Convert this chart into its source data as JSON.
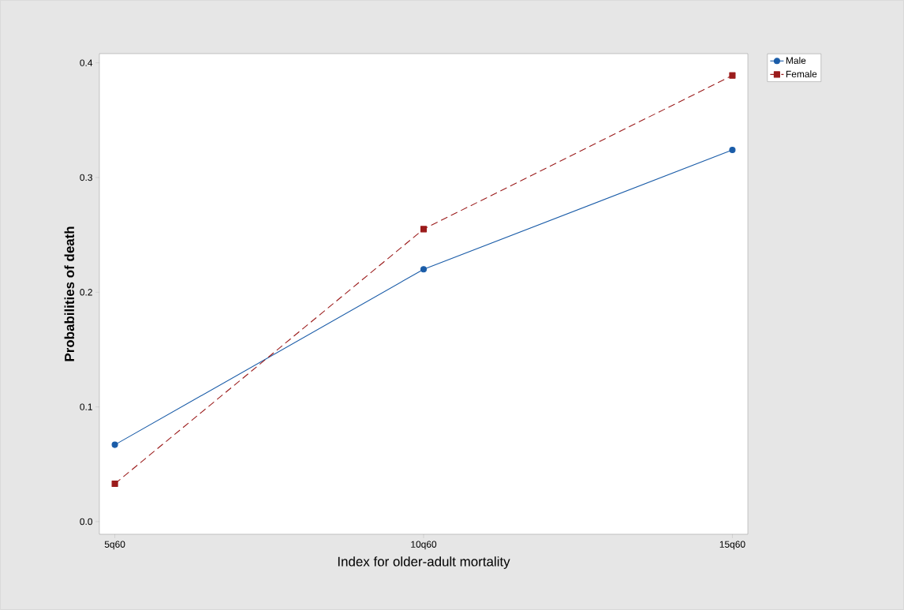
{
  "chart_data": {
    "type": "line",
    "xlabel": "Index for older-adult mortality",
    "ylabel": "Probabilities of death",
    "categories": [
      "5q60",
      "10q60",
      "15q60"
    ],
    "series": [
      {
        "name": "Male",
        "color": "#1a5ca8",
        "values": [
          0.067,
          0.22,
          0.324
        ],
        "marker": "circle",
        "line_style": "solid"
      },
      {
        "name": "Female",
        "color": "#9b1b1b",
        "values": [
          0.033,
          0.255,
          0.389
        ],
        "marker": "square",
        "line_style": "dashed"
      }
    ],
    "ylim": [
      -0.011,
      0.408
    ],
    "yticks": [
      {
        "value": 0,
        "label": "0.0"
      },
      0.1,
      0.2,
      0.3,
      0.4
    ],
    "grid": false,
    "legend": "right"
  }
}
